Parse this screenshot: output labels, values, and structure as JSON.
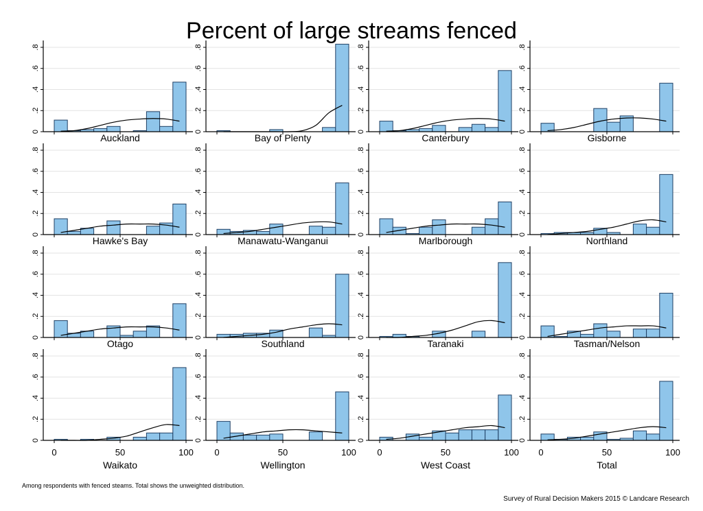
{
  "footnote": "Among respondents with fenced steams. Total shows the unweighted distribution.",
  "credit": "Survey of Rural Decision Makers 2015 © Landcare Research",
  "colors": {
    "bar_fill": "#8fc5ea",
    "bar_stroke": "#1f3f63",
    "grid": "#e3e3e3",
    "axis": "#000000",
    "curve": "#000000"
  },
  "chart_data": {
    "type": "bar",
    "title": "Percent of large streams fenced",
    "subtype": "faceted histogram with density curve",
    "x_ticks": [
      0,
      50,
      100
    ],
    "y_ticks": [
      0,
      0.2,
      0.4,
      0.6,
      0.8
    ],
    "y_tick_labels": [
      "0",
      ".2",
      ".4",
      ".6",
      ".8"
    ],
    "xlim": [
      0,
      100
    ],
    "ylim": [
      0,
      0.8
    ],
    "bin_centers": [
      5,
      15,
      25,
      35,
      45,
      55,
      65,
      75,
      85,
      95
    ],
    "panels": [
      {
        "name": "Auckland",
        "values": [
          0.11,
          0.01,
          0.02,
          0.03,
          0.05,
          0.0,
          0.01,
          0.19,
          0.05,
          0.47
        ],
        "density": [
          0.005,
          0.01,
          0.03,
          0.06,
          0.09,
          0.11,
          0.12,
          0.125,
          0.12,
          0.1
        ]
      },
      {
        "name": "Bay of Plenty",
        "values": [
          0.01,
          0.0,
          0.0,
          0.0,
          0.02,
          0.0,
          0.0,
          0.0,
          0.04,
          0.83
        ],
        "density": [
          0.0,
          0.0,
          0.0,
          0.0,
          0.0,
          0.0,
          0.01,
          0.06,
          0.18,
          0.25
        ]
      },
      {
        "name": "Canterbury",
        "values": [
          0.1,
          0.01,
          0.02,
          0.03,
          0.06,
          0.0,
          0.04,
          0.07,
          0.04,
          0.58
        ],
        "density": [
          0.005,
          0.01,
          0.03,
          0.06,
          0.09,
          0.11,
          0.12,
          0.125,
          0.12,
          0.1
        ]
      },
      {
        "name": "Gisborne",
        "values": [
          0.08,
          0.0,
          0.0,
          0.0,
          0.22,
          0.09,
          0.15,
          0.0,
          0.0,
          0.46
        ],
        "density": [
          0.01,
          0.02,
          0.04,
          0.07,
          0.1,
          0.12,
          0.13,
          0.13,
          0.12,
          0.1
        ]
      },
      {
        "name": "Hawke's Bay",
        "values": [
          0.15,
          0.03,
          0.06,
          0.0,
          0.13,
          0.0,
          0.0,
          0.08,
          0.11,
          0.29
        ],
        "density": [
          0.02,
          0.04,
          0.06,
          0.08,
          0.09,
          0.1,
          0.1,
          0.1,
          0.09,
          0.07
        ]
      },
      {
        "name": "Manawatu-Wanganui",
        "values": [
          0.05,
          0.03,
          0.04,
          0.03,
          0.1,
          0.0,
          0.0,
          0.08,
          0.07,
          0.49
        ],
        "density": [
          0.01,
          0.02,
          0.03,
          0.05,
          0.07,
          0.09,
          0.11,
          0.12,
          0.12,
          0.1
        ]
      },
      {
        "name": "Marlborough",
        "values": [
          0.15,
          0.07,
          0.01,
          0.07,
          0.14,
          0.0,
          0.0,
          0.07,
          0.15,
          0.31
        ],
        "density": [
          0.02,
          0.04,
          0.06,
          0.08,
          0.09,
          0.1,
          0.1,
          0.1,
          0.09,
          0.07
        ]
      },
      {
        "name": "Northland",
        "values": [
          0.01,
          0.02,
          0.02,
          0.02,
          0.06,
          0.02,
          0.0,
          0.1,
          0.07,
          0.57
        ],
        "density": [
          0.0,
          0.01,
          0.02,
          0.03,
          0.05,
          0.07,
          0.1,
          0.13,
          0.14,
          0.12
        ]
      },
      {
        "name": "Otago",
        "values": [
          0.16,
          0.04,
          0.06,
          0.0,
          0.11,
          0.02,
          0.06,
          0.11,
          0.0,
          0.32
        ],
        "density": [
          0.02,
          0.04,
          0.06,
          0.08,
          0.09,
          0.1,
          0.1,
          0.1,
          0.09,
          0.07
        ]
      },
      {
        "name": "Southland",
        "values": [
          0.03,
          0.03,
          0.04,
          0.04,
          0.07,
          0.0,
          0.0,
          0.09,
          0.02,
          0.6
        ],
        "density": [
          0.0,
          0.01,
          0.02,
          0.03,
          0.05,
          0.08,
          0.1,
          0.12,
          0.13,
          0.12
        ]
      },
      {
        "name": "Taranaki",
        "values": [
          0.01,
          0.03,
          0.01,
          0.0,
          0.06,
          0.0,
          0.0,
          0.06,
          0.0,
          0.71
        ],
        "density": [
          0.0,
          0.0,
          0.01,
          0.02,
          0.04,
          0.07,
          0.11,
          0.15,
          0.16,
          0.14
        ]
      },
      {
        "name": "Tasman/Nelson",
        "values": [
          0.11,
          0.01,
          0.06,
          0.03,
          0.13,
          0.06,
          0.0,
          0.08,
          0.08,
          0.42
        ],
        "density": [
          0.01,
          0.03,
          0.05,
          0.07,
          0.09,
          0.1,
          0.11,
          0.11,
          0.11,
          0.09
        ]
      },
      {
        "name": "Waikato",
        "values": [
          0.01,
          0.0,
          0.01,
          0.0,
          0.03,
          0.0,
          0.03,
          0.07,
          0.07,
          0.69
        ],
        "density": [
          0.0,
          0.0,
          0.0,
          0.01,
          0.02,
          0.04,
          0.08,
          0.12,
          0.15,
          0.14
        ]
      },
      {
        "name": "Wellington",
        "values": [
          0.18,
          0.07,
          0.05,
          0.05,
          0.06,
          0.0,
          0.0,
          0.08,
          0.0,
          0.46
        ],
        "density": [
          0.02,
          0.04,
          0.06,
          0.08,
          0.09,
          0.1,
          0.1,
          0.09,
          0.08,
          0.07
        ]
      },
      {
        "name": "West Coast",
        "values": [
          0.03,
          0.0,
          0.06,
          0.03,
          0.09,
          0.07,
          0.1,
          0.1,
          0.1,
          0.43
        ],
        "density": [
          0.01,
          0.02,
          0.04,
          0.06,
          0.08,
          0.1,
          0.12,
          0.13,
          0.14,
          0.12
        ]
      },
      {
        "name": "Total",
        "values": [
          0.06,
          0.01,
          0.03,
          0.03,
          0.08,
          0.01,
          0.02,
          0.09,
          0.06,
          0.56
        ],
        "density": [
          0.005,
          0.01,
          0.02,
          0.04,
          0.06,
          0.08,
          0.1,
          0.12,
          0.13,
          0.12
        ]
      }
    ]
  }
}
